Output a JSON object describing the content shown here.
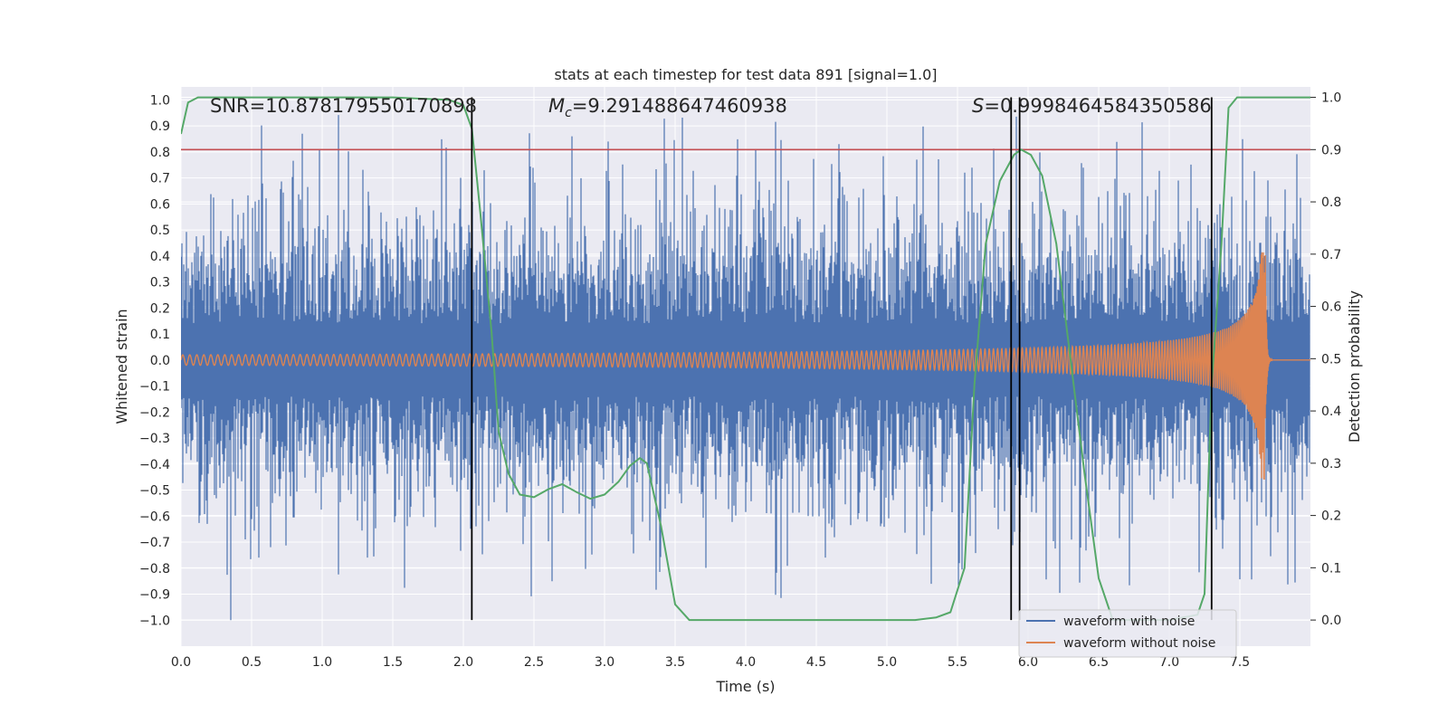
{
  "chart_data": {
    "type": "line",
    "title": "stats at each timestep for test data 891 [signal=1.0]",
    "xlabel": "Time (s)",
    "ylabel": "Whitened strain",
    "y2label": "Detection probability",
    "xlim": [
      0.0,
      8.0
    ],
    "ylim": [
      -1.1,
      1.05
    ],
    "y2lim": [
      -0.05,
      1.02
    ],
    "xticks": [
      0.0,
      0.5,
      1.0,
      1.5,
      2.0,
      2.5,
      3.0,
      3.5,
      4.0,
      4.5,
      5.0,
      5.5,
      6.0,
      6.5,
      7.0,
      7.5
    ],
    "xtick_labels": [
      "0.0",
      "0.5",
      "1.0",
      "1.5",
      "2.0",
      "2.5",
      "3.0",
      "3.5",
      "4.0",
      "4.5",
      "5.0",
      "5.5",
      "6.0",
      "6.5",
      "7.0",
      "7.5"
    ],
    "yticks": [
      1.0,
      0.9,
      0.8,
      0.7,
      0.6,
      0.5,
      0.4,
      0.3,
      0.2,
      0.1,
      0.0,
      -0.1,
      -0.2,
      -0.3,
      -0.4,
      -0.5,
      -0.6,
      -0.7,
      -0.8,
      -0.9,
      -1.0
    ],
    "ytick_labels": [
      "1.0",
      "0.9",
      "0.8",
      "0.7",
      "0.6",
      "0.5",
      "0.4",
      "0.3",
      "0.2",
      "0.1",
      "0.0",
      "−0.1",
      "−0.2",
      "−0.3",
      "−0.4",
      "−0.5",
      "−0.6",
      "−0.7",
      "−0.8",
      "−0.9",
      "−1.0"
    ],
    "y2ticks": [
      1.0,
      0.9,
      0.8,
      0.7,
      0.6,
      0.5,
      0.4,
      0.3,
      0.2,
      0.1,
      0.0
    ],
    "y2tick_labels": [
      "1.0",
      "0.9",
      "0.8",
      "0.7",
      "0.6",
      "0.5",
      "0.4",
      "0.3",
      "0.2",
      "0.1",
      "0.0"
    ],
    "grid": true,
    "legend_position": "bottom-right",
    "annotations": {
      "snr": "SNR=10.878179550170898",
      "mc_prefix": "M",
      "mc_sub": "c",
      "mc_value": "=9.291488647460938",
      "s_prefix": "S",
      "s_value": "=0.9998464584350586"
    },
    "colors": {
      "noise": "#4c72b0",
      "clean": "#dd8452",
      "prob": "#55a868",
      "threshold": "#c44e52",
      "vlines": "#000000",
      "background": "#eaeaf2",
      "grid": "#ffffff"
    },
    "threshold": {
      "axis": "y2",
      "value": 0.9
    },
    "vertical_lines": [
      2.06,
      5.88,
      5.94,
      7.3
    ],
    "series": [
      {
        "name": "waveform with noise",
        "axis": "y",
        "style": "dense-noise",
        "t_range": [
          0.0,
          8.0
        ],
        "approx_envelope": {
          "upper_typical": 0.45,
          "lower_typical": -0.45,
          "max_peak": 0.98,
          "min_peak": -1.0
        }
      },
      {
        "name": "waveform without noise",
        "axis": "y",
        "style": "chirp",
        "t_range": [
          0.0,
          7.68
        ],
        "ringdown_end": 7.73,
        "amplitude_start": 0.02,
        "amplitude_peak": 0.46,
        "freq_start_hz": 20,
        "merger_time": 7.68
      },
      {
        "name": "Detection probability",
        "axis": "y2",
        "points": [
          [
            0.0,
            0.93
          ],
          [
            0.05,
            0.99
          ],
          [
            0.12,
            1.0
          ],
          [
            0.5,
            1.0
          ],
          [
            1.0,
            1.0
          ],
          [
            1.5,
            1.0
          ],
          [
            1.9,
            0.995
          ],
          [
            2.0,
            0.985
          ],
          [
            2.06,
            0.94
          ],
          [
            2.12,
            0.78
          ],
          [
            2.2,
            0.55
          ],
          [
            2.25,
            0.36
          ],
          [
            2.32,
            0.28
          ],
          [
            2.4,
            0.24
          ],
          [
            2.5,
            0.235
          ],
          [
            2.6,
            0.25
          ],
          [
            2.7,
            0.26
          ],
          [
            2.8,
            0.245
          ],
          [
            2.9,
            0.232
          ],
          [
            3.0,
            0.24
          ],
          [
            3.1,
            0.265
          ],
          [
            3.18,
            0.295
          ],
          [
            3.25,
            0.31
          ],
          [
            3.3,
            0.3
          ],
          [
            3.4,
            0.18
          ],
          [
            3.5,
            0.03
          ],
          [
            3.6,
            0.0
          ],
          [
            3.8,
            0.0
          ],
          [
            4.5,
            0.0
          ],
          [
            5.0,
            0.0
          ],
          [
            5.2,
            0.0
          ],
          [
            5.35,
            0.005
          ],
          [
            5.45,
            0.015
          ],
          [
            5.55,
            0.1
          ],
          [
            5.62,
            0.45
          ],
          [
            5.7,
            0.72
          ],
          [
            5.8,
            0.84
          ],
          [
            5.9,
            0.89
          ],
          [
            5.95,
            0.9
          ],
          [
            6.02,
            0.89
          ],
          [
            6.1,
            0.85
          ],
          [
            6.2,
            0.72
          ],
          [
            6.3,
            0.5
          ],
          [
            6.4,
            0.28
          ],
          [
            6.5,
            0.08
          ],
          [
            6.6,
            0.0
          ],
          [
            7.0,
            0.0
          ],
          [
            7.2,
            0.01
          ],
          [
            7.25,
            0.05
          ],
          [
            7.3,
            0.45
          ],
          [
            7.37,
            0.72
          ],
          [
            7.42,
            0.98
          ],
          [
            7.48,
            1.0
          ],
          [
            7.6,
            1.0
          ],
          [
            8.0,
            1.0
          ]
        ]
      }
    ],
    "legend": [
      "waveform with noise",
      "waveform without noise"
    ]
  }
}
